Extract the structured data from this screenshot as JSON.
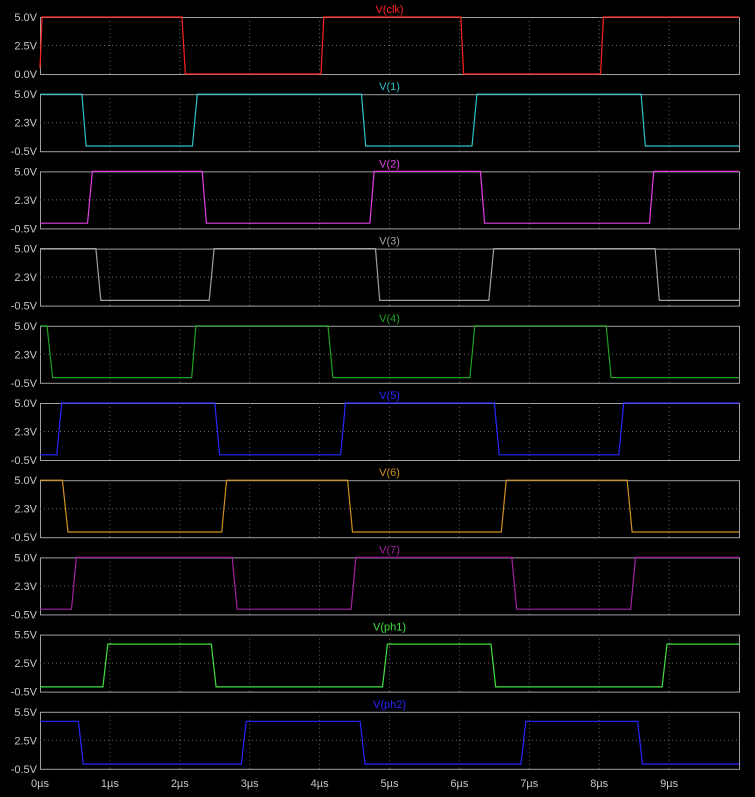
{
  "chart_data": {
    "type": "line",
    "time_axis": {
      "unit": "µs",
      "range": [
        0,
        10
      ],
      "tick_labels": [
        "0µs",
        "1µs",
        "2µs",
        "3µs",
        "4µs",
        "5µs",
        "6µs",
        "7µs",
        "8µs",
        "9µs"
      ],
      "tick_values": [
        0,
        1,
        2,
        3,
        4,
        5,
        6,
        7,
        8,
        9
      ]
    },
    "grid": "dotted",
    "background": "#000000",
    "panels": [
      {
        "title": "V(clk)",
        "color": "#ff2020",
        "ylim": [
          0,
          5
        ],
        "ytick_labels": [
          "5.0V",
          "2.5V",
          "0.0V"
        ],
        "ytick_values": [
          5,
          2.5,
          0
        ],
        "points": [
          [
            0,
            0.5
          ],
          [
            0.03,
            5
          ],
          [
            2.03,
            5
          ],
          [
            2.08,
            0
          ],
          [
            4.02,
            0
          ],
          [
            4.06,
            5
          ],
          [
            6.02,
            5
          ],
          [
            6.06,
            0
          ],
          [
            8.02,
            0
          ],
          [
            8.06,
            5
          ],
          [
            10,
            5
          ]
        ]
      },
      {
        "title": "V(1)",
        "color": "#2ec4c4",
        "ylim": [
          -0.5,
          5
        ],
        "ytick_labels": [
          "5.0V",
          "2.3V",
          "-0.5V"
        ],
        "ytick_values": [
          5,
          2.3,
          -0.5
        ],
        "points": [
          [
            0,
            5
          ],
          [
            0.6,
            5
          ],
          [
            0.66,
            0
          ],
          [
            2.18,
            0
          ],
          [
            2.25,
            5
          ],
          [
            4.6,
            5
          ],
          [
            4.66,
            0
          ],
          [
            6.18,
            0
          ],
          [
            6.25,
            5
          ],
          [
            8.6,
            5
          ],
          [
            8.66,
            0
          ],
          [
            10,
            0
          ]
        ]
      },
      {
        "title": "V(2)",
        "color": "#e040e0",
        "ylim": [
          -0.5,
          5
        ],
        "ytick_labels": [
          "5.0V",
          "2.3V",
          "-0.5V"
        ],
        "ytick_values": [
          5,
          2.3,
          -0.5
        ],
        "points": [
          [
            0,
            0
          ],
          [
            0.68,
            0
          ],
          [
            0.75,
            5
          ],
          [
            2.32,
            5
          ],
          [
            2.38,
            0
          ],
          [
            4.72,
            0
          ],
          [
            4.78,
            5
          ],
          [
            6.3,
            5
          ],
          [
            6.36,
            0
          ],
          [
            8.72,
            0
          ],
          [
            8.78,
            5
          ],
          [
            10,
            5
          ]
        ]
      },
      {
        "title": "V(3)",
        "color": "#a0a0a0",
        "ylim": [
          -0.5,
          5
        ],
        "ytick_labels": [
          "5.0V",
          "2.3V",
          "-0.5V"
        ],
        "ytick_values": [
          5,
          2.3,
          -0.5
        ],
        "points": [
          [
            0,
            5
          ],
          [
            0.8,
            5
          ],
          [
            0.87,
            0
          ],
          [
            2.42,
            0
          ],
          [
            2.49,
            5
          ],
          [
            4.8,
            5
          ],
          [
            4.86,
            0
          ],
          [
            6.42,
            0
          ],
          [
            6.49,
            5
          ],
          [
            8.8,
            5
          ],
          [
            8.86,
            0
          ],
          [
            10,
            0
          ]
        ]
      },
      {
        "title": "V(4)",
        "color": "#20a020",
        "ylim": [
          -0.5,
          5
        ],
        "ytick_labels": [
          "5.0V",
          "2.3V",
          "-0.5V"
        ],
        "ytick_values": [
          5,
          2.3,
          -0.5
        ],
        "points": [
          [
            0,
            5
          ],
          [
            0.1,
            5
          ],
          [
            0.18,
            0
          ],
          [
            2.17,
            0
          ],
          [
            2.23,
            5
          ],
          [
            4.12,
            5
          ],
          [
            4.19,
            0
          ],
          [
            6.15,
            0
          ],
          [
            6.22,
            5
          ],
          [
            8.1,
            5
          ],
          [
            8.17,
            0
          ],
          [
            10,
            0
          ]
        ]
      },
      {
        "title": "V(5)",
        "color": "#2828ff",
        "ylim": [
          -0.5,
          5
        ],
        "ytick_labels": [
          "5.0V",
          "2.3V",
          "-0.5V"
        ],
        "ytick_values": [
          5,
          2.3,
          -0.5
        ],
        "points": [
          [
            0,
            0
          ],
          [
            0.24,
            0
          ],
          [
            0.31,
            5
          ],
          [
            2.5,
            5
          ],
          [
            2.57,
            0
          ],
          [
            4.3,
            0
          ],
          [
            4.37,
            5
          ],
          [
            6.5,
            5
          ],
          [
            6.57,
            0
          ],
          [
            8.28,
            0
          ],
          [
            8.35,
            5
          ],
          [
            10,
            5
          ]
        ]
      },
      {
        "title": "V(6)",
        "color": "#d09020",
        "ylim": [
          -0.5,
          5
        ],
        "ytick_labels": [
          "5.0V",
          "2.3V",
          "-0.5V"
        ],
        "ytick_values": [
          5,
          2.3,
          -0.5
        ],
        "points": [
          [
            0,
            5
          ],
          [
            0.32,
            5
          ],
          [
            0.4,
            0
          ],
          [
            2.6,
            0
          ],
          [
            2.67,
            5
          ],
          [
            4.4,
            5
          ],
          [
            4.47,
            0
          ],
          [
            6.6,
            0
          ],
          [
            6.67,
            5
          ],
          [
            8.4,
            5
          ],
          [
            8.47,
            0
          ],
          [
            10,
            0
          ]
        ]
      },
      {
        "title": "V(7)",
        "color": "#a020a0",
        "ylim": [
          -0.5,
          5
        ],
        "ytick_labels": [
          "5.0V",
          "2.3V",
          "-0.5V"
        ],
        "ytick_values": [
          5,
          2.3,
          -0.5
        ],
        "points": [
          [
            0,
            0
          ],
          [
            0.45,
            0
          ],
          [
            0.52,
            5
          ],
          [
            2.75,
            5
          ],
          [
            2.82,
            0
          ],
          [
            4.45,
            0
          ],
          [
            4.52,
            5
          ],
          [
            6.75,
            5
          ],
          [
            6.82,
            0
          ],
          [
            8.45,
            0
          ],
          [
            8.52,
            5
          ],
          [
            10,
            5
          ]
        ]
      },
      {
        "title": "V(ph1)",
        "color": "#40e040",
        "ylim": [
          -0.5,
          5.5
        ],
        "ytick_labels": [
          "5.5V",
          "2.5V",
          "-0.5V"
        ],
        "ytick_values": [
          5.5,
          2.5,
          -0.5
        ],
        "points": [
          [
            0,
            0
          ],
          [
            0.9,
            0
          ],
          [
            0.97,
            4.5
          ],
          [
            2.45,
            4.5
          ],
          [
            2.52,
            0
          ],
          [
            4.9,
            0
          ],
          [
            4.97,
            4.5
          ],
          [
            6.45,
            4.5
          ],
          [
            6.52,
            0
          ],
          [
            8.9,
            0
          ],
          [
            8.97,
            4.5
          ],
          [
            10,
            4.5
          ]
        ]
      },
      {
        "title": "V(ph2)",
        "color": "#2828ff",
        "ylim": [
          -0.5,
          5.5
        ],
        "ytick_labels": [
          "5.5V",
          "2.5V",
          "-0.5V"
        ],
        "ytick_values": [
          5.5,
          2.5,
          -0.5
        ],
        "points": [
          [
            0,
            4.5
          ],
          [
            0.55,
            4.5
          ],
          [
            0.62,
            0
          ],
          [
            2.88,
            0
          ],
          [
            2.95,
            4.5
          ],
          [
            4.58,
            4.5
          ],
          [
            4.65,
            0
          ],
          [
            6.88,
            0
          ],
          [
            6.95,
            4.5
          ],
          [
            8.55,
            4.5
          ],
          [
            8.62,
            0
          ],
          [
            10,
            0
          ]
        ]
      }
    ]
  }
}
